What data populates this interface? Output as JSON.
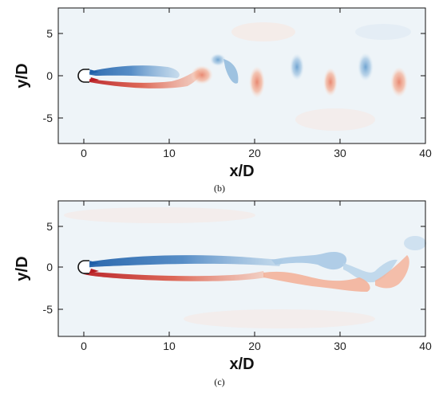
{
  "panels": [
    {
      "caption": "(b)",
      "xlabel": "x/D",
      "ylabel": "y/D",
      "xticks": [
        "0",
        "10",
        "20",
        "30",
        "40"
      ],
      "yticks": [
        "5",
        "0",
        "-5"
      ],
      "xlim": [
        -3,
        40
      ],
      "ylim": [
        -8,
        8
      ]
    },
    {
      "caption": "(c)",
      "xlabel": "x/D",
      "ylabel": "y/D",
      "xticks": [
        "0",
        "10",
        "20",
        "30",
        "40"
      ],
      "yticks": [
        "5",
        "0",
        "-5"
      ],
      "xlim": [
        -3,
        40
      ],
      "ylim": [
        -8,
        8
      ]
    }
  ],
  "colors": {
    "positive": "#d0312d",
    "negative": "#2166ac",
    "background": "#eef4f8"
  }
}
